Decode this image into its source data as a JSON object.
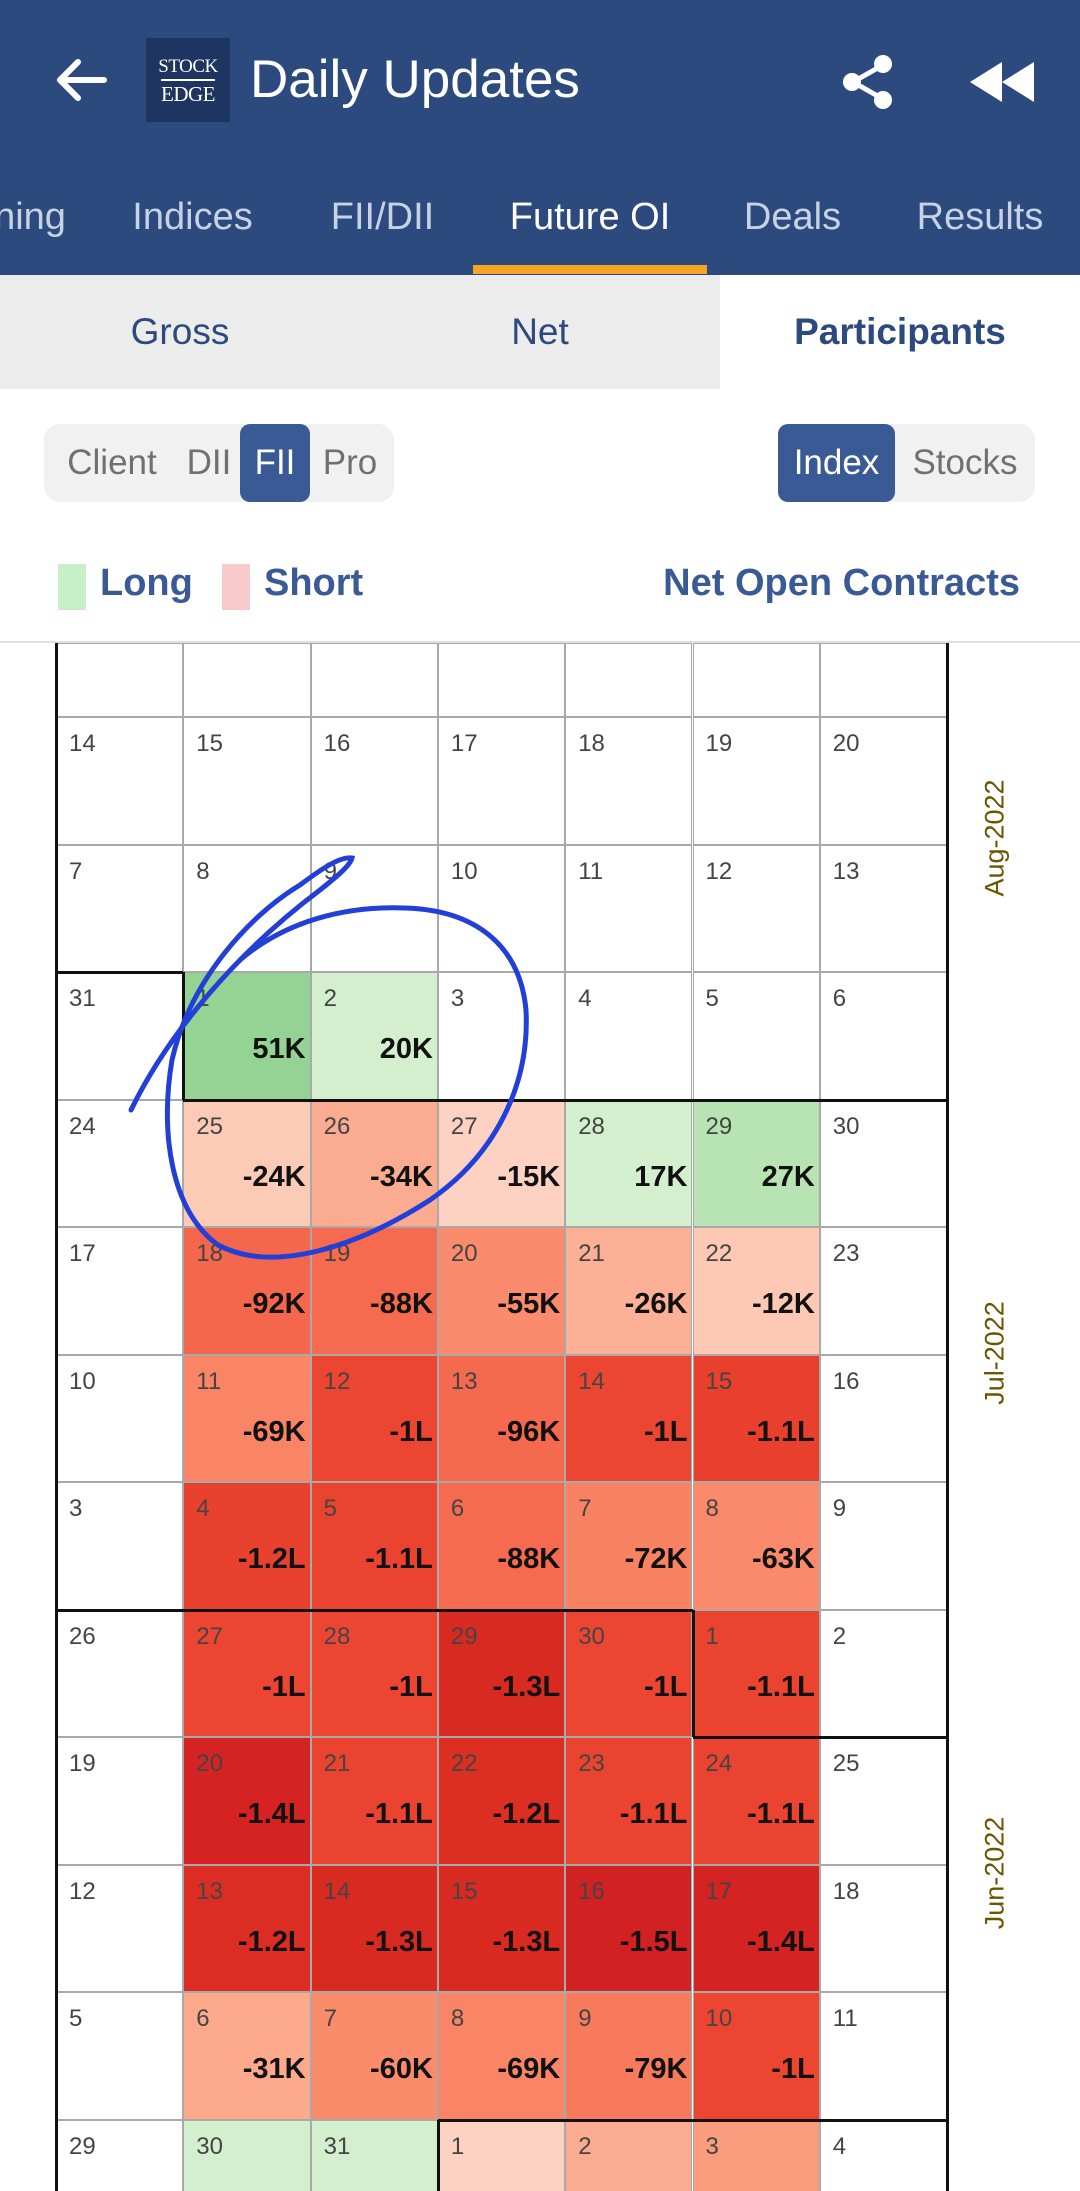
{
  "app": {
    "title": "Daily Updates",
    "logo_line1": "STOCK",
    "logo_line2": "EDGE"
  },
  "icons": {
    "back": "back-arrow-icon",
    "share": "share-icon",
    "rewind": "rewind-icon"
  },
  "colors": {
    "header": "#2c4a7e",
    "tab_indicator": "#f5a623",
    "accent": "#3a5a96",
    "long": "#c8f0c8",
    "short": "#f8caca"
  },
  "tabs": [
    {
      "label": "ning"
    },
    {
      "label": "Indices"
    },
    {
      "label": "FII/DII"
    },
    {
      "label": "Future OI",
      "active": true
    },
    {
      "label": "Deals"
    },
    {
      "label": "Results"
    }
  ],
  "segments": [
    {
      "label": "Gross"
    },
    {
      "label": "Net"
    },
    {
      "label": "Participants",
      "active": true
    }
  ],
  "participants": [
    {
      "label": "Client"
    },
    {
      "label": "DII"
    },
    {
      "label": "FII",
      "active": true
    },
    {
      "label": "Pro"
    }
  ],
  "instruments": [
    {
      "label": "Index",
      "active": true
    },
    {
      "label": "Stocks"
    }
  ],
  "legend": {
    "long": "Long",
    "short": "Short",
    "title": "Net Open Contracts"
  },
  "months": [
    "Aug-2022",
    "Jul-2022",
    "Jun-2022"
  ],
  "calendar_rows": [
    {
      "days": [
        {
          "d": ""
        },
        {
          "d": ""
        },
        {
          "d": ""
        },
        {
          "d": ""
        },
        {
          "d": ""
        },
        {
          "d": ""
        },
        {
          "d": ""
        }
      ]
    },
    {
      "days": [
        {
          "d": "14"
        },
        {
          "d": "15"
        },
        {
          "d": "16"
        },
        {
          "d": "17"
        },
        {
          "d": "18"
        },
        {
          "d": "19"
        },
        {
          "d": "20"
        }
      ]
    },
    {
      "days": [
        {
          "d": "7"
        },
        {
          "d": "8"
        },
        {
          "d": "9"
        },
        {
          "d": "10"
        },
        {
          "d": "11"
        },
        {
          "d": "12"
        },
        {
          "d": "13"
        }
      ]
    },
    {
      "days": [
        {
          "d": "31"
        },
        {
          "d": "1",
          "v": "51K",
          "c": "#95d394"
        },
        {
          "d": "2",
          "v": "20K",
          "c": "#d3efcd"
        },
        {
          "d": "3"
        },
        {
          "d": "4"
        },
        {
          "d": "5"
        },
        {
          "d": "6"
        }
      ]
    },
    {
      "days": [
        {
          "d": "24"
        },
        {
          "d": "25",
          "v": "-24K",
          "c": "#fccbb6"
        },
        {
          "d": "26",
          "v": "-34K",
          "c": "#fbab8f"
        },
        {
          "d": "27",
          "v": "-15K",
          "c": "#fdd2c2"
        },
        {
          "d": "28",
          "v": "17K",
          "c": "#d3efcd"
        },
        {
          "d": "29",
          "v": "27K",
          "c": "#b8e3b2"
        },
        {
          "d": "30"
        }
      ]
    },
    {
      "days": [
        {
          "d": "17"
        },
        {
          "d": "18",
          "v": "-92K",
          "c": "#f5674c"
        },
        {
          "d": "19",
          "v": "-88K",
          "c": "#f66b4f"
        },
        {
          "d": "20",
          "v": "-55K",
          "c": "#fa8b6c"
        },
        {
          "d": "21",
          "v": "-26K",
          "c": "#fcb095"
        },
        {
          "d": "22",
          "v": "-12K",
          "c": "#fdc9b5"
        },
        {
          "d": "23"
        }
      ]
    },
    {
      "days": [
        {
          "d": "10"
        },
        {
          "d": "11",
          "v": "-69K",
          "c": "#f98566"
        },
        {
          "d": "12",
          "v": "-1L",
          "c": "#ec4632"
        },
        {
          "d": "13",
          "v": "-96K",
          "c": "#f56a4e"
        },
        {
          "d": "14",
          "v": "-1L",
          "c": "#ec4632"
        },
        {
          "d": "15",
          "v": "-1.1L",
          "c": "#e93f2d"
        },
        {
          "d": "16"
        }
      ]
    },
    {
      "days": [
        {
          "d": "3"
        },
        {
          "d": "4",
          "v": "-1.2L",
          "c": "#e8412e"
        },
        {
          "d": "5",
          "v": "-1.1L",
          "c": "#ea4330"
        },
        {
          "d": "6",
          "v": "-88K",
          "c": "#f66b4f"
        },
        {
          "d": "7",
          "v": "-72K",
          "c": "#f98262"
        },
        {
          "d": "8",
          "v": "-63K",
          "c": "#fa8a6b"
        },
        {
          "d": "9"
        }
      ]
    },
    {
      "days": [
        {
          "d": "26"
        },
        {
          "d": "27",
          "v": "-1L",
          "c": "#ec4632"
        },
        {
          "d": "28",
          "v": "-1L",
          "c": "#ec4632"
        },
        {
          "d": "29",
          "v": "-1.3L",
          "c": "#d92a22"
        },
        {
          "d": "30",
          "v": "-1L",
          "c": "#ec4632"
        },
        {
          "d": "1",
          "v": "-1.1L",
          "c": "#ea4330"
        },
        {
          "d": "2"
        }
      ]
    },
    {
      "days": [
        {
          "d": "19"
        },
        {
          "d": "20",
          "v": "-1.4L",
          "c": "#d42322"
        },
        {
          "d": "21",
          "v": "-1.1L",
          "c": "#ea4330"
        },
        {
          "d": "22",
          "v": "-1.2L",
          "c": "#dd2e24"
        },
        {
          "d": "23",
          "v": "-1.1L",
          "c": "#ea4330"
        },
        {
          "d": "24",
          "v": "-1.1L",
          "c": "#ea4330"
        },
        {
          "d": "25"
        }
      ]
    },
    {
      "days": [
        {
          "d": "12"
        },
        {
          "d": "13",
          "v": "-1.2L",
          "c": "#dc2d24"
        },
        {
          "d": "14",
          "v": "-1.3L",
          "c": "#d92a22"
        },
        {
          "d": "15",
          "v": "-1.3L",
          "c": "#d92a22"
        },
        {
          "d": "16",
          "v": "-1.5L",
          "c": "#d22122"
        },
        {
          "d": "17",
          "v": "-1.4L",
          "c": "#d42322"
        },
        {
          "d": "18"
        }
      ]
    },
    {
      "days": [
        {
          "d": "5"
        },
        {
          "d": "6",
          "v": "-31K",
          "c": "#fca98c"
        },
        {
          "d": "7",
          "v": "-60K",
          "c": "#fa8c6c"
        },
        {
          "d": "8",
          "v": "-69K",
          "c": "#f98566"
        },
        {
          "d": "9",
          "v": "-79K",
          "c": "#f77a5c"
        },
        {
          "d": "10",
          "v": "-1L",
          "c": "#ec4632"
        },
        {
          "d": "11"
        }
      ]
    },
    {
      "days": [
        {
          "d": "29"
        },
        {
          "d": "30",
          "c": "#d3efcd"
        },
        {
          "d": "31",
          "c": "#d3efcd"
        },
        {
          "d": "1",
          "c": "#fdd2c2"
        },
        {
          "d": "2",
          "c": "#fbab8f"
        },
        {
          "d": "3",
          "c": "#fa9c7e"
        },
        {
          "d": "4"
        }
      ]
    }
  ]
}
